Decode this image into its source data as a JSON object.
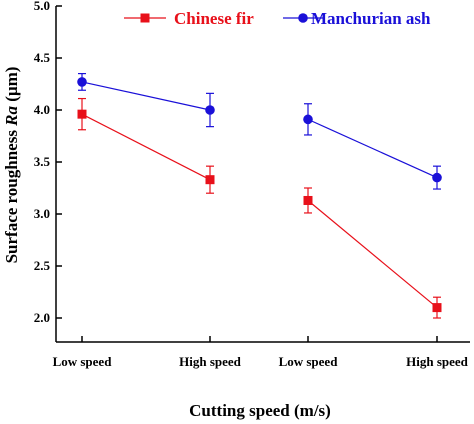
{
  "chart_data": {
    "type": "line",
    "categories": [
      "Low speed",
      "High speed",
      "Low speed",
      "High speed"
    ],
    "xlabel": "Cutting speed (m/s)",
    "ylabel_prefix": "Surface roughness ",
    "ylabel_italic": "Ra",
    "ylabel_suffix": " (μm)",
    "ylim": [
      2.0,
      5.0
    ],
    "yticks": [
      "2.0",
      "2.5",
      "3.0",
      "3.5",
      "4.0",
      "4.5",
      "5.0"
    ],
    "legend_position": "top",
    "series": [
      {
        "name": "Chinese fir",
        "color": "#e8101a",
        "marker": "square",
        "segments": [
          [
            0,
            1
          ],
          [
            2,
            3
          ]
        ],
        "values": [
          3.96,
          3.33,
          3.13,
          2.1
        ],
        "errors": [
          0.15,
          0.13,
          0.12,
          0.1
        ]
      },
      {
        "name": "Manchurian ash",
        "color": "#1a10d8",
        "marker": "circle",
        "segments": [
          [
            0,
            1
          ],
          [
            2,
            3
          ]
        ],
        "values": [
          4.27,
          4.0,
          3.91,
          3.35
        ],
        "errors": [
          0.08,
          0.16,
          0.15,
          0.11
        ]
      }
    ]
  }
}
